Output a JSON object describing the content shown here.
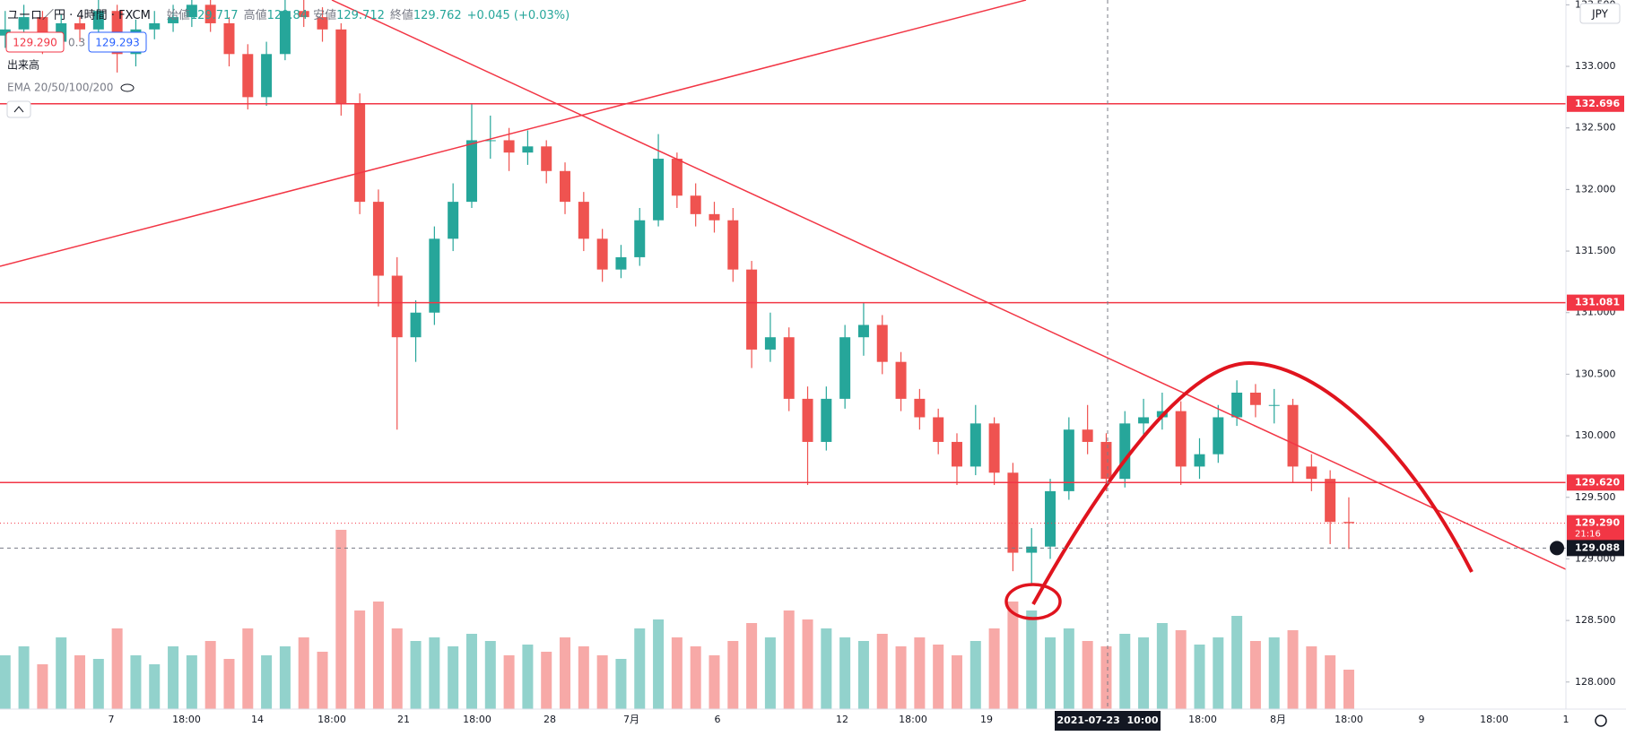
{
  "chart_data": {
    "type": "candlestick",
    "title": "ユーロ／円 · 4時間 · FXCM",
    "ohlc_legend": [
      {
        "label": "始値",
        "value": 129.717
      },
      {
        "label": "高値",
        "value": 129.84
      },
      {
        "label": "安値",
        "value": 129.712
      },
      {
        "label": "終値",
        "value": 129.762
      }
    ],
    "change_label": "+0.045 (+0.03%)",
    "bid": {
      "value": 129.29,
      "label": "129.290"
    },
    "spread": 0.3,
    "ask": {
      "value": 129.293,
      "label": "129.293"
    },
    "volume_label": "出来高",
    "ema_label": "EMA 20/50/100/200",
    "currency": "JPY",
    "ylim": [
      127.78,
      133.539
    ],
    "yticks": [
      {
        "value": 128,
        "label": "128.000"
      },
      {
        "value": 128.5,
        "label": "128.500"
      },
      {
        "value": 129,
        "label": "129.000"
      },
      {
        "value": 129.5,
        "label": "129.500"
      },
      {
        "value": 130,
        "label": "130.000"
      },
      {
        "value": 130.5,
        "label": "130.500"
      },
      {
        "value": 131,
        "label": "131.000"
      },
      {
        "value": 131.5,
        "label": "131.500"
      },
      {
        "value": 132,
        "label": "132.000"
      },
      {
        "value": 132.5,
        "label": "132.500"
      },
      {
        "value": 133,
        "label": "133.000"
      },
      {
        "value": 133.5,
        "label": "133.500"
      }
    ],
    "levels": [
      {
        "value": 132.696,
        "label": "132.696"
      },
      {
        "value": 131.081,
        "label": "131.081"
      },
      {
        "value": 129.62,
        "label": "129.620"
      }
    ],
    "current_price": {
      "value": 129.29,
      "label": "129.290",
      "countdown": "21:16"
    },
    "crosshair": {
      "price": {
        "value": 129.088,
        "label": "129.088"
      },
      "time": "2021-07-23  10:00"
    },
    "xlabels": [
      "7",
      "18:00",
      "14",
      "18:00",
      "21",
      "18:00",
      "28",
      "7月",
      "6",
      "12",
      "18:00",
      "19",
      "18:00",
      "8月",
      "18:00",
      "9",
      "18:00",
      "1"
    ],
    "up_color": "#26a69a",
    "down_color": "#ef5350",
    "candles": [
      [
        133.25,
        133.45,
        133.15,
        133.3
      ],
      [
        133.3,
        133.5,
        133.22,
        133.4
      ],
      [
        133.4,
        133.45,
        133.1,
        133.2
      ],
      [
        133.2,
        133.42,
        133.12,
        133.35
      ],
      [
        133.35,
        133.4,
        133.2,
        133.3
      ],
      [
        133.3,
        133.55,
        133.25,
        133.45
      ],
      [
        133.45,
        133.5,
        132.95,
        133.1
      ],
      [
        133.1,
        133.38,
        133.0,
        133.3
      ],
      [
        133.3,
        133.45,
        133.22,
        133.35
      ],
      [
        133.35,
        133.5,
        133.28,
        133.4
      ],
      [
        133.4,
        133.6,
        133.32,
        133.5
      ],
      [
        133.5,
        133.55,
        133.28,
        133.35
      ],
      [
        133.35,
        133.4,
        133.0,
        133.1
      ],
      [
        133.1,
        133.18,
        132.65,
        132.75
      ],
      [
        132.75,
        133.2,
        132.68,
        133.1
      ],
      [
        133.1,
        133.55,
        133.05,
        133.45
      ],
      [
        133.45,
        133.55,
        133.32,
        133.4
      ],
      [
        133.4,
        133.48,
        133.2,
        133.3
      ],
      [
        133.3,
        133.35,
        132.6,
        132.7
      ],
      [
        132.7,
        132.78,
        131.8,
        131.9
      ],
      [
        131.9,
        132.0,
        131.05,
        131.3
      ],
      [
        131.3,
        131.45,
        130.05,
        130.8
      ],
      [
        130.8,
        131.1,
        130.6,
        131.0
      ],
      [
        131.0,
        131.7,
        130.9,
        131.6
      ],
      [
        131.6,
        132.05,
        131.5,
        131.9
      ],
      [
        131.9,
        132.7,
        131.85,
        132.4
      ],
      [
        132.4,
        132.6,
        132.25,
        132.4
      ],
      [
        132.4,
        132.5,
        132.15,
        132.3
      ],
      [
        132.3,
        132.48,
        132.2,
        132.35
      ],
      [
        132.35,
        132.4,
        132.05,
        132.15
      ],
      [
        132.15,
        132.22,
        131.8,
        131.9
      ],
      [
        131.9,
        131.98,
        131.5,
        131.6
      ],
      [
        131.6,
        131.68,
        131.25,
        131.35
      ],
      [
        131.35,
        131.55,
        131.28,
        131.45
      ],
      [
        131.45,
        131.85,
        131.38,
        131.75
      ],
      [
        131.75,
        132.45,
        131.7,
        132.25
      ],
      [
        132.25,
        132.3,
        131.85,
        131.95
      ],
      [
        131.95,
        132.05,
        131.7,
        131.8
      ],
      [
        131.8,
        131.9,
        131.65,
        131.75
      ],
      [
        131.75,
        131.85,
        131.25,
        131.35
      ],
      [
        131.35,
        131.42,
        130.55,
        130.7
      ],
      [
        130.7,
        131.0,
        130.6,
        130.8
      ],
      [
        130.8,
        130.88,
        130.2,
        130.3
      ],
      [
        130.3,
        130.4,
        129.6,
        129.95
      ],
      [
        129.95,
        130.4,
        129.88,
        130.3
      ],
      [
        130.3,
        130.9,
        130.22,
        130.8
      ],
      [
        130.8,
        131.08,
        130.65,
        130.9
      ],
      [
        130.9,
        130.98,
        130.5,
        130.6
      ],
      [
        130.6,
        130.68,
        130.2,
        130.3
      ],
      [
        130.3,
        130.38,
        130.05,
        130.15
      ],
      [
        130.15,
        130.22,
        129.85,
        129.95
      ],
      [
        129.95,
        130.02,
        129.6,
        129.75
      ],
      [
        129.75,
        130.25,
        129.68,
        130.1
      ],
      [
        130.1,
        130.15,
        129.6,
        129.7
      ],
      [
        129.7,
        129.78,
        128.9,
        129.05
      ],
      [
        129.05,
        129.25,
        128.8,
        129.1
      ],
      [
        129.1,
        129.65,
        129.0,
        129.55
      ],
      [
        129.55,
        130.15,
        129.48,
        130.05
      ],
      [
        130.05,
        130.25,
        129.85,
        129.95
      ],
      [
        129.95,
        130.02,
        129.55,
        129.65
      ],
      [
        129.65,
        130.2,
        129.58,
        130.1
      ],
      [
        130.1,
        130.3,
        130.0,
        130.15
      ],
      [
        130.15,
        130.35,
        130.05,
        130.2
      ],
      [
        130.2,
        130.28,
        129.6,
        129.75
      ],
      [
        129.75,
        129.98,
        129.65,
        129.85
      ],
      [
        129.85,
        130.25,
        129.78,
        130.15
      ],
      [
        130.15,
        130.45,
        130.08,
        130.35
      ],
      [
        130.35,
        130.42,
        130.15,
        130.25
      ],
      [
        130.25,
        130.38,
        130.1,
        130.25
      ],
      [
        130.25,
        130.3,
        129.62,
        129.75
      ],
      [
        129.75,
        129.85,
        129.55,
        129.65
      ],
      [
        129.65,
        129.72,
        129.12,
        129.3
      ],
      [
        129.3,
        129.5,
        129.08,
        129.29
      ]
    ],
    "volumes": [
      30,
      35,
      25,
      40,
      30,
      28,
      45,
      30,
      25,
      35,
      30,
      38,
      28,
      45,
      30,
      35,
      40,
      32,
      100,
      55,
      60,
      45,
      38,
      40,
      35,
      42,
      38,
      30,
      36,
      32,
      40,
      35,
      30,
      28,
      45,
      50,
      40,
      35,
      30,
      38,
      48,
      40,
      55,
      50,
      45,
      40,
      38,
      42,
      35,
      40,
      36,
      30,
      38,
      45,
      60,
      55,
      40,
      45,
      38,
      35,
      42,
      40,
      48,
      44,
      36,
      40,
      52,
      38,
      40,
      44,
      35,
      30,
      22
    ],
    "volume_lim": [
      0,
      100
    ]
  }
}
